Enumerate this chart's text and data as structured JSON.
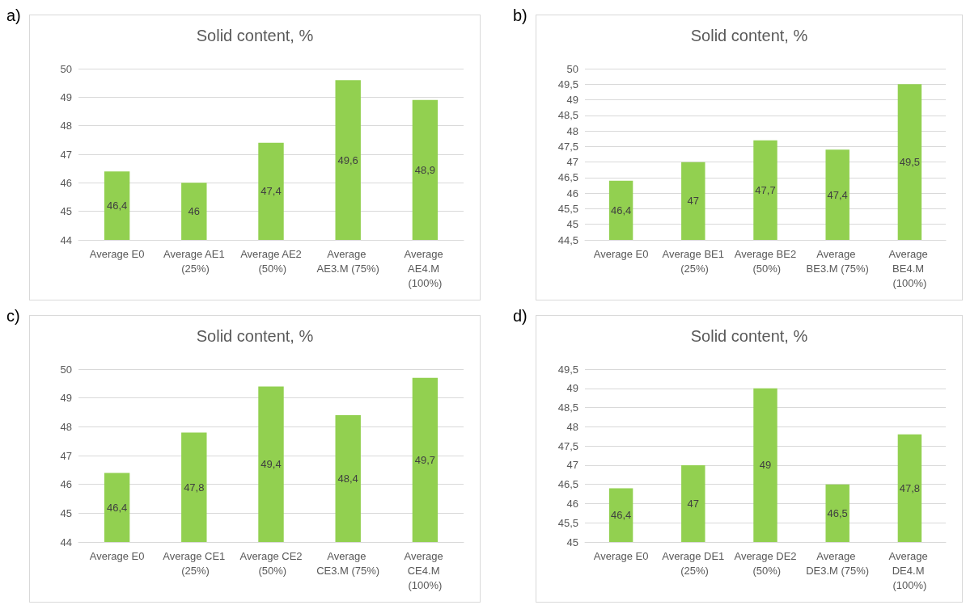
{
  "chart_data": [
    {
      "type": "bar",
      "title": "Solid content, %",
      "annotations": [
        "a)"
      ],
      "categories": [
        "Average E0",
        "Average AE1 (25%)",
        "Average AE2 (50%)",
        "Average AE3.M (75%)",
        "Average AE4.M (100%)"
      ],
      "color": "#92d050",
      "values": [
        46.4,
        46,
        47.4,
        49.6,
        48.9
      ],
      "value_labels": [
        "46,4",
        "46",
        "47,4",
        "49,6",
        "48,9"
      ],
      "ylim": [
        44,
        50
      ],
      "yticks": [
        44,
        45,
        46,
        47,
        48,
        49,
        50
      ],
      "grid": "y"
    },
    {
      "type": "bar",
      "title": "Solid content, %",
      "annotations": [
        "b)"
      ],
      "categories": [
        "Average E0",
        "Average BE1 (25%)",
        "Average BE2 (50%)",
        "Average BE3.M (75%)",
        "Average BE4.M (100%)"
      ],
      "color": "#92d050",
      "values": [
        46.4,
        47,
        47.7,
        47.4,
        49.5
      ],
      "value_labels": [
        "46,4",
        "47",
        "47,7",
        "47,4",
        "49,5"
      ],
      "ylim": [
        44.5,
        50
      ],
      "yticks": [
        {
          "value": 44.5,
          "label": "44,5"
        },
        45,
        {
          "value": 45.5,
          "label": "45,5"
        },
        46,
        {
          "value": 46.5,
          "label": "46,5"
        },
        47,
        {
          "value": 47.5,
          "label": "47,5"
        },
        48,
        {
          "value": 48.5,
          "label": "48,5"
        },
        49,
        {
          "value": 49.5,
          "label": "49,5"
        },
        50
      ],
      "grid": "y"
    },
    {
      "type": "bar",
      "title": "Solid content, %",
      "annotations": [
        "c)"
      ],
      "categories": [
        "Average E0",
        "Average CE1 (25%)",
        "Average CE2 (50%)",
        "Average CE3.M (75%)",
        "Average CE4.M (100%)"
      ],
      "color": "#92d050",
      "values": [
        46.4,
        47.8,
        49.4,
        48.4,
        49.7
      ],
      "value_labels": [
        "46,4",
        "47,8",
        "49,4",
        "48,4",
        "49,7"
      ],
      "ylim": [
        44,
        50
      ],
      "yticks": [
        44,
        45,
        46,
        47,
        48,
        49,
        50
      ],
      "grid": "y"
    },
    {
      "type": "bar",
      "title": "Solid content, %",
      "annotations": [
        "d)"
      ],
      "categories": [
        "Average E0",
        "Average DE1 (25%)",
        "Average DE2 (50%)",
        "Average DE3.M (75%)",
        "Average DE4.M (100%)"
      ],
      "color": "#92d050",
      "values": [
        46.4,
        47,
        49,
        46.5,
        47.8
      ],
      "value_labels": [
        "46,4",
        "47",
        "49",
        "46,5",
        "47,8"
      ],
      "ylim": [
        45,
        49.5
      ],
      "yticks": [
        45,
        {
          "value": 45.5,
          "label": "45,5"
        },
        46,
        {
          "value": 46.5,
          "label": "46,5"
        },
        47,
        {
          "value": 47.5,
          "label": "47,5"
        },
        48,
        {
          "value": 48.5,
          "label": "48,5"
        },
        49,
        {
          "value": 49.5,
          "label": "49,5"
        }
      ],
      "grid": "y"
    }
  ]
}
